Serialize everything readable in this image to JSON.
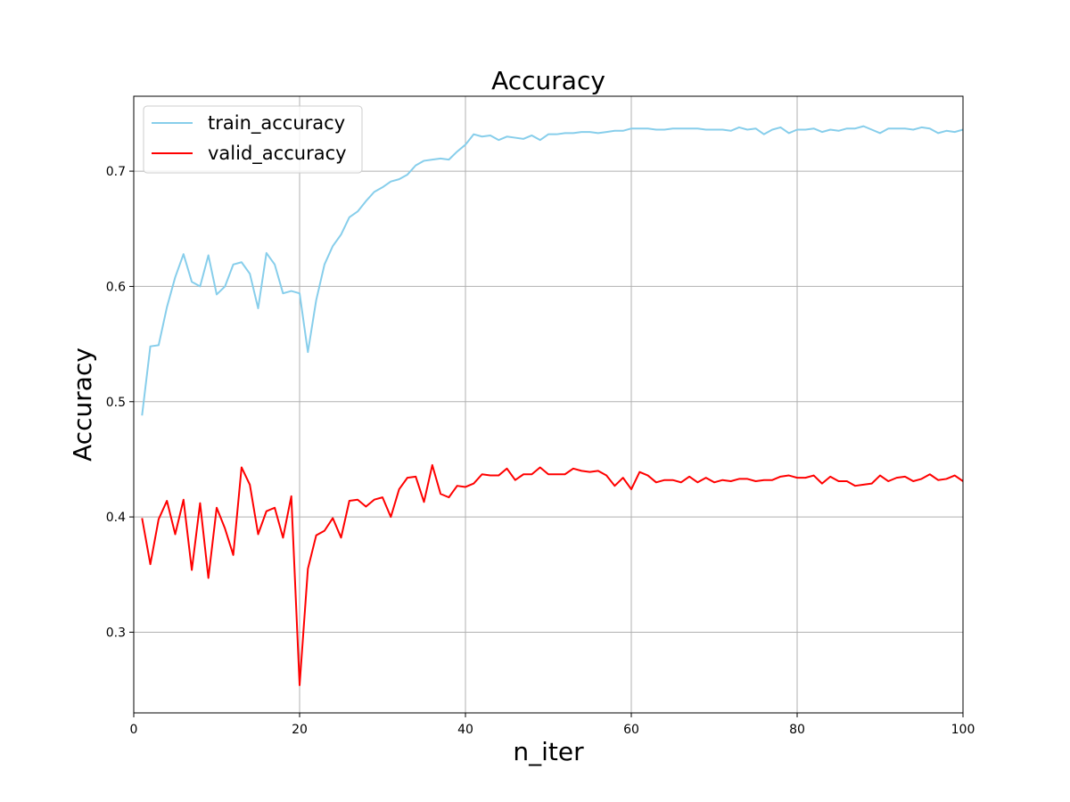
{
  "chart_data": {
    "type": "line",
    "title": "Accuracy",
    "xlabel": "n_iter",
    "ylabel": "Accuracy",
    "xlim": [
      0,
      100
    ],
    "ylim": [
      0.23,
      0.765
    ],
    "xticks": [
      0,
      20,
      40,
      60,
      80,
      100
    ],
    "yticks": [
      0.3,
      0.4,
      0.5,
      0.6,
      0.7
    ],
    "ytick_labels": [
      "0.3",
      "0.4",
      "0.5",
      "0.6",
      "0.7"
    ],
    "grid": true,
    "legend_position": "top-left",
    "series": [
      {
        "name": "train_accuracy",
        "color": "#87ceeb",
        "x": [
          1,
          2,
          3,
          4,
          5,
          6,
          7,
          8,
          9,
          10,
          11,
          12,
          13,
          14,
          15,
          16,
          17,
          18,
          19,
          20,
          21,
          22,
          23,
          24,
          25,
          26,
          27,
          28,
          29,
          30,
          31,
          32,
          33,
          34,
          35,
          36,
          37,
          38,
          39,
          40,
          41,
          42,
          43,
          44,
          45,
          46,
          47,
          48,
          49,
          50,
          51,
          52,
          53,
          54,
          55,
          56,
          57,
          58,
          59,
          60,
          61,
          62,
          63,
          64,
          65,
          66,
          67,
          68,
          69,
          70,
          71,
          72,
          73,
          74,
          75,
          76,
          77,
          78,
          79,
          80,
          81,
          82,
          83,
          84,
          85,
          86,
          87,
          88,
          89,
          90,
          91,
          92,
          93,
          94,
          95,
          96,
          97,
          98,
          99,
          100
        ],
        "values": [
          0.488,
          0.548,
          0.549,
          0.582,
          0.608,
          0.628,
          0.604,
          0.6,
          0.627,
          0.593,
          0.6,
          0.619,
          0.621,
          0.611,
          0.581,
          0.629,
          0.619,
          0.594,
          0.596,
          0.594,
          0.543,
          0.588,
          0.619,
          0.635,
          0.645,
          0.66,
          0.665,
          0.674,
          0.682,
          0.686,
          0.691,
          0.693,
          0.697,
          0.705,
          0.709,
          0.71,
          0.711,
          0.71,
          0.717,
          0.723,
          0.732,
          0.73,
          0.731,
          0.727,
          0.73,
          0.729,
          0.728,
          0.731,
          0.727,
          0.732,
          0.732,
          0.733,
          0.733,
          0.734,
          0.734,
          0.733,
          0.734,
          0.735,
          0.735,
          0.737,
          0.737,
          0.737,
          0.736,
          0.736,
          0.737,
          0.737,
          0.737,
          0.737,
          0.736,
          0.736,
          0.736,
          0.735,
          0.738,
          0.736,
          0.737,
          0.732,
          0.736,
          0.738,
          0.733,
          0.736,
          0.736,
          0.737,
          0.734,
          0.736,
          0.735,
          0.737,
          0.737,
          0.739,
          0.736,
          0.733,
          0.737,
          0.737,
          0.737,
          0.736,
          0.738,
          0.737,
          0.733,
          0.735,
          0.734,
          0.736
        ]
      },
      {
        "name": "valid_accuracy",
        "color": "#ff0000",
        "x": [
          1,
          2,
          3,
          4,
          5,
          6,
          7,
          8,
          9,
          10,
          11,
          12,
          13,
          14,
          15,
          16,
          17,
          18,
          19,
          20,
          21,
          22,
          23,
          24,
          25,
          26,
          27,
          28,
          29,
          30,
          31,
          32,
          33,
          34,
          35,
          36,
          37,
          38,
          39,
          40,
          41,
          42,
          43,
          44,
          45,
          46,
          47,
          48,
          49,
          50,
          51,
          52,
          53,
          54,
          55,
          56,
          57,
          58,
          59,
          60,
          61,
          62,
          63,
          64,
          65,
          66,
          67,
          68,
          69,
          70,
          71,
          72,
          73,
          74,
          75,
          76,
          77,
          78,
          79,
          80,
          81,
          82,
          83,
          84,
          85,
          86,
          87,
          88,
          89,
          90,
          91,
          92,
          93,
          94,
          95,
          96,
          97,
          98,
          99,
          100
        ],
        "values": [
          0.399,
          0.359,
          0.398,
          0.414,
          0.385,
          0.415,
          0.354,
          0.412,
          0.347,
          0.408,
          0.39,
          0.367,
          0.443,
          0.428,
          0.385,
          0.405,
          0.408,
          0.382,
          0.418,
          0.254,
          0.355,
          0.384,
          0.388,
          0.399,
          0.382,
          0.414,
          0.415,
          0.409,
          0.415,
          0.417,
          0.4,
          0.424,
          0.434,
          0.435,
          0.413,
          0.445,
          0.42,
          0.417,
          0.427,
          0.426,
          0.429,
          0.437,
          0.436,
          0.436,
          0.442,
          0.432,
          0.437,
          0.437,
          0.443,
          0.437,
          0.437,
          0.437,
          0.442,
          0.44,
          0.439,
          0.44,
          0.436,
          0.427,
          0.434,
          0.424,
          0.439,
          0.436,
          0.43,
          0.432,
          0.432,
          0.43,
          0.435,
          0.43,
          0.434,
          0.43,
          0.432,
          0.431,
          0.433,
          0.433,
          0.431,
          0.432,
          0.432,
          0.435,
          0.436,
          0.434,
          0.434,
          0.436,
          0.429,
          0.435,
          0.431,
          0.431,
          0.427,
          0.428,
          0.429,
          0.436,
          0.431,
          0.434,
          0.435,
          0.431,
          0.433,
          0.437,
          0.432,
          0.433,
          0.436,
          0.431
        ]
      }
    ]
  }
}
